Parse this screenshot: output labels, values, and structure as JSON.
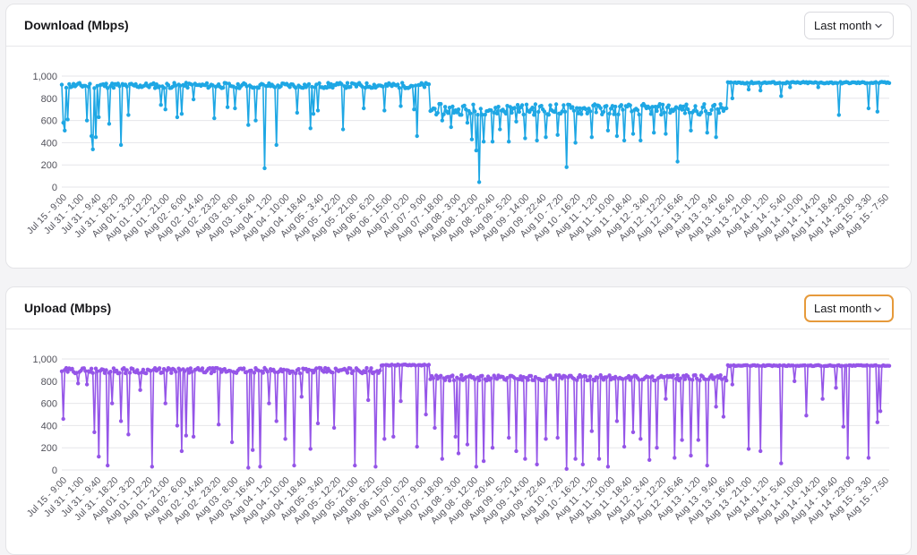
{
  "download": {
    "title": "Download (Mbps)",
    "range_label": "Last month",
    "icon": "chevron-down-icon"
  },
  "upload": {
    "title": "Upload (Mbps)",
    "range_label": "Last month",
    "icon": "chevron-down-icon"
  },
  "chart_data": [
    {
      "type": "line",
      "title": "Download (Mbps)",
      "ylim": [
        0,
        1000
      ],
      "yticks": [
        "0",
        "200",
        "400",
        "600",
        "800",
        "1,000"
      ],
      "color": "#1ea7e4",
      "grid": true,
      "x_tick_labels": [
        "Jul 15 - 9:00",
        "Jul 31 - 1:00",
        "Jul 31 - 9:40",
        "Jul 31 - 18:20",
        "Aug 01 - 3:20",
        "Aug 01 - 12:20",
        "Aug 01 - 21:00",
        "Aug 02 - 6:00",
        "Aug 02 - 14:40",
        "Aug 02 - 23:20",
        "Aug 03 - 8:00",
        "Aug 03 - 16:40",
        "Aug 04 - 1:20",
        "Aug 04 - 10:00",
        "Aug 04 - 18:40",
        "Aug 05 - 3:40",
        "Aug 05 - 12:20",
        "Aug 05 - 21:00",
        "Aug 06 - 6:20",
        "Aug 06 - 15:00",
        "Aug 07 - 0:20",
        "Aug 07 - 9:00",
        "Aug 07 - 18:00",
        "Aug 08 - 3:00",
        "Aug 08 - 12:00",
        "Aug 08 - 20:40",
        "Aug 09 - 5:20",
        "Aug 09 - 14:00",
        "Aug 09 - 22:40",
        "Aug 10 - 7:20",
        "Aug 10 - 16:20",
        "Aug 11 - 1:20",
        "Aug 11 - 10:00",
        "Aug 11 - 18:40",
        "Aug 12 - 3:40",
        "Aug 12 - 12:20",
        "Aug 12 - 16:46",
        "Aug 13 - 1:20",
        "Aug 13 - 9:40",
        "Aug 13 - 16:40",
        "Aug 13 - 21:00",
        "Aug 14 - 1:20",
        "Aug 14 - 5:40",
        "Aug 14 - 10:00",
        "Aug 14 - 14:20",
        "Aug 14 - 18:40",
        "Aug 14 - 23:00",
        "Aug 15 - 3:30",
        "Aug 15 - 7:50"
      ],
      "segments": [
        {
          "from": 0.0,
          "to": 0.445,
          "base": 915,
          "jitter": 25
        },
        {
          "from": 0.445,
          "to": 0.805,
          "base": 700,
          "jitter": 50
        },
        {
          "from": 0.805,
          "to": 1.0,
          "base": 940,
          "jitter": 8
        }
      ],
      "dips": [
        [
          0.002,
          580
        ],
        [
          0.004,
          510
        ],
        [
          0.008,
          610
        ],
        [
          0.03,
          600
        ],
        [
          0.035,
          460
        ],
        [
          0.038,
          340
        ],
        [
          0.042,
          450
        ],
        [
          0.045,
          630
        ],
        [
          0.058,
          570
        ],
        [
          0.072,
          380
        ],
        [
          0.08,
          650
        ],
        [
          0.12,
          740
        ],
        [
          0.125,
          700
        ],
        [
          0.14,
          630
        ],
        [
          0.145,
          660
        ],
        [
          0.16,
          790
        ],
        [
          0.185,
          620
        ],
        [
          0.2,
          720
        ],
        [
          0.21,
          710
        ],
        [
          0.225,
          560
        ],
        [
          0.235,
          600
        ],
        [
          0.245,
          170
        ],
        [
          0.26,
          380
        ],
        [
          0.285,
          670
        ],
        [
          0.3,
          530
        ],
        [
          0.305,
          660
        ],
        [
          0.31,
          690
        ],
        [
          0.34,
          520
        ],
        [
          0.365,
          710
        ],
        [
          0.39,
          690
        ],
        [
          0.41,
          730
        ],
        [
          0.425,
          700
        ],
        [
          0.43,
          460
        ],
        [
          0.46,
          600
        ],
        [
          0.47,
          540
        ],
        [
          0.48,
          700
        ],
        [
          0.49,
          580
        ],
        [
          0.495,
          430
        ],
        [
          0.5,
          330
        ],
        [
          0.505,
          45
        ],
        [
          0.51,
          410
        ],
        [
          0.52,
          410
        ],
        [
          0.53,
          520
        ],
        [
          0.54,
          410
        ],
        [
          0.55,
          590
        ],
        [
          0.56,
          440
        ],
        [
          0.575,
          420
        ],
        [
          0.585,
          450
        ],
        [
          0.6,
          470
        ],
        [
          0.61,
          180
        ],
        [
          0.62,
          400
        ],
        [
          0.64,
          450
        ],
        [
          0.66,
          510
        ],
        [
          0.67,
          460
        ],
        [
          0.68,
          420
        ],
        [
          0.69,
          480
        ],
        [
          0.7,
          420
        ],
        [
          0.715,
          490
        ],
        [
          0.73,
          480
        ],
        [
          0.745,
          230
        ],
        [
          0.76,
          510
        ],
        [
          0.78,
          490
        ],
        [
          0.79,
          450
        ],
        [
          0.81,
          800
        ],
        [
          0.83,
          880
        ],
        [
          0.845,
          870
        ],
        [
          0.87,
          820
        ],
        [
          0.88,
          900
        ],
        [
          0.915,
          900
        ],
        [
          0.94,
          650
        ],
        [
          0.975,
          710
        ],
        [
          0.985,
          680
        ]
      ],
      "seed": 11
    },
    {
      "type": "line",
      "title": "Upload (Mbps)",
      "ylim": [
        0,
        1000
      ],
      "yticks": [
        "0",
        "200",
        "400",
        "600",
        "800",
        "1,000"
      ],
      "color": "#9555e8",
      "grid": true,
      "x_tick_labels": [
        "Jul 15 - 9:00",
        "Jul 31 - 1:00",
        "Jul 31 - 9:40",
        "Jul 31 - 18:20",
        "Aug 01 - 3:20",
        "Aug 01 - 12:20",
        "Aug 01 - 21:00",
        "Aug 02 - 6:00",
        "Aug 02 - 14:40",
        "Aug 02 - 23:20",
        "Aug 03 - 8:00",
        "Aug 03 - 16:40",
        "Aug 04 - 1:20",
        "Aug 04 - 10:00",
        "Aug 04 - 18:40",
        "Aug 05 - 3:40",
        "Aug 05 - 12:20",
        "Aug 05 - 21:00",
        "Aug 06 - 6:20",
        "Aug 06 - 15:00",
        "Aug 07 - 0:20",
        "Aug 07 - 9:00",
        "Aug 07 - 18:00",
        "Aug 08 - 3:00",
        "Aug 08 - 12:00",
        "Aug 08 - 20:40",
        "Aug 09 - 5:20",
        "Aug 09 - 14:00",
        "Aug 09 - 22:40",
        "Aug 10 - 7:20",
        "Aug 10 - 16:20",
        "Aug 11 - 1:20",
        "Aug 11 - 10:00",
        "Aug 11 - 18:40",
        "Aug 12 - 3:40",
        "Aug 12 - 12:20",
        "Aug 12 - 16:46",
        "Aug 13 - 1:20",
        "Aug 13 - 9:40",
        "Aug 13 - 16:40",
        "Aug 13 - 21:00",
        "Aug 14 - 1:20",
        "Aug 14 - 5:40",
        "Aug 14 - 10:00",
        "Aug 14 - 14:20",
        "Aug 14 - 18:40",
        "Aug 14 - 23:00",
        "Aug 15 - 3:30",
        "Aug 15 - 7:50"
      ],
      "segments": [
        {
          "from": 0.0,
          "to": 0.385,
          "base": 895,
          "jitter": 25
        },
        {
          "from": 0.385,
          "to": 0.445,
          "base": 945,
          "jitter": 5
        },
        {
          "from": 0.445,
          "to": 0.805,
          "base": 830,
          "jitter": 25
        },
        {
          "from": 0.805,
          "to": 1.0,
          "base": 940,
          "jitter": 5
        }
      ],
      "dips": [
        [
          0.001,
          460
        ],
        [
          0.02,
          780
        ],
        [
          0.03,
          770
        ],
        [
          0.04,
          340
        ],
        [
          0.045,
          120
        ],
        [
          0.055,
          40
        ],
        [
          0.06,
          600
        ],
        [
          0.072,
          440
        ],
        [
          0.08,
          320
        ],
        [
          0.095,
          720
        ],
        [
          0.11,
          30
        ],
        [
          0.125,
          600
        ],
        [
          0.14,
          400
        ],
        [
          0.145,
          170
        ],
        [
          0.15,
          310
        ],
        [
          0.16,
          300
        ],
        [
          0.19,
          410
        ],
        [
          0.205,
          250
        ],
        [
          0.225,
          20
        ],
        [
          0.23,
          180
        ],
        [
          0.24,
          30
        ],
        [
          0.25,
          600
        ],
        [
          0.26,
          440
        ],
        [
          0.27,
          280
        ],
        [
          0.28,
          40
        ],
        [
          0.29,
          660
        ],
        [
          0.3,
          190
        ],
        [
          0.31,
          420
        ],
        [
          0.33,
          380
        ],
        [
          0.355,
          40
        ],
        [
          0.37,
          630
        ],
        [
          0.38,
          30
        ],
        [
          0.39,
          280
        ],
        [
          0.4,
          300
        ],
        [
          0.41,
          620
        ],
        [
          0.43,
          210
        ],
        [
          0.44,
          500
        ],
        [
          0.45,
          380
        ],
        [
          0.46,
          100
        ],
        [
          0.475,
          300
        ],
        [
          0.48,
          150
        ],
        [
          0.49,
          230
        ],
        [
          0.5,
          30
        ],
        [
          0.51,
          80
        ],
        [
          0.52,
          200
        ],
        [
          0.54,
          290
        ],
        [
          0.55,
          170
        ],
        [
          0.56,
          100
        ],
        [
          0.575,
          50
        ],
        [
          0.585,
          280
        ],
        [
          0.6,
          290
        ],
        [
          0.61,
          10
        ],
        [
          0.62,
          100
        ],
        [
          0.63,
          50
        ],
        [
          0.64,
          350
        ],
        [
          0.65,
          100
        ],
        [
          0.66,
          30
        ],
        [
          0.67,
          440
        ],
        [
          0.68,
          210
        ],
        [
          0.69,
          340
        ],
        [
          0.7,
          280
        ],
        [
          0.71,
          90
        ],
        [
          0.72,
          200
        ],
        [
          0.73,
          640
        ],
        [
          0.74,
          110
        ],
        [
          0.75,
          270
        ],
        [
          0.76,
          130
        ],
        [
          0.77,
          270
        ],
        [
          0.78,
          40
        ],
        [
          0.79,
          570
        ],
        [
          0.8,
          480
        ],
        [
          0.81,
          770
        ],
        [
          0.83,
          190
        ],
        [
          0.845,
          170
        ],
        [
          0.87,
          60
        ],
        [
          0.885,
          800
        ],
        [
          0.9,
          490
        ],
        [
          0.92,
          640
        ],
        [
          0.935,
          740
        ],
        [
          0.945,
          390
        ],
        [
          0.95,
          110
        ],
        [
          0.975,
          110
        ],
        [
          0.985,
          430
        ],
        [
          0.99,
          530
        ]
      ],
      "seed": 29
    }
  ]
}
